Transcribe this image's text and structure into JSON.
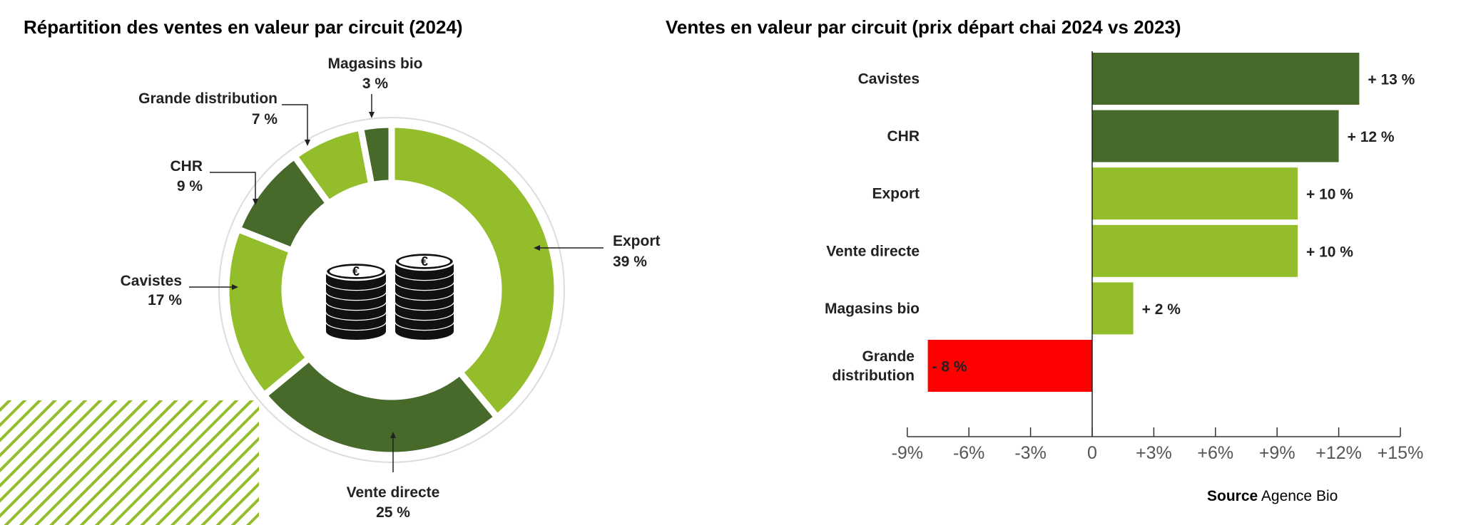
{
  "colors": {
    "dark_green": "#476a2b",
    "light_green": "#93bd2a",
    "red": "#ff0000",
    "ring": "#dddddd"
  },
  "chart_data": [
    {
      "type": "pie",
      "title": "Répartition des ventes en valeur par circuit (2024)",
      "center_icon": "euro-coins-icon",
      "slices": [
        {
          "label": "Export",
          "value": 39,
          "value_label": "39 %",
          "color": "#93bd2a"
        },
        {
          "label": "Vente directe",
          "value": 25,
          "value_label": "25 %",
          "color": "#476a2b"
        },
        {
          "label": "Cavistes",
          "value": 17,
          "value_label": "17 %",
          "color": "#93bd2a"
        },
        {
          "label": "CHR",
          "value": 9,
          "value_label": "9 %",
          "color": "#476a2b"
        },
        {
          "label": "Grande distribution",
          "value": 7,
          "value_label": "7 %",
          "color": "#93bd2a"
        },
        {
          "label": "Magasins bio",
          "value": 3,
          "value_label": "3 %",
          "color": "#476a2b"
        }
      ]
    },
    {
      "type": "bar",
      "orientation": "horizontal",
      "title": "Ventes en valeur par circuit (prix départ chai 2024 vs 2023)",
      "categories": [
        "Cavistes",
        "CHR",
        "Export",
        "Vente directe",
        "Magasins bio",
        "Grande distribution"
      ],
      "category_lines": [
        [
          "Cavistes"
        ],
        [
          "CHR"
        ],
        [
          "Export"
        ],
        [
          "Vente directe"
        ],
        [
          "Magasins bio"
        ],
        [
          "Grande",
          "distribution"
        ]
      ],
      "values": [
        13,
        12,
        10,
        10,
        2,
        -8
      ],
      "value_labels": [
        "+ 13 %",
        "+ 12 %",
        "+ 10 %",
        "+ 10 %",
        "+ 2 %",
        "- 8 %"
      ],
      "bar_colors": [
        "#476a2b",
        "#476a2b",
        "#93bd2a",
        "#93bd2a",
        "#93bd2a",
        "#ff0000"
      ],
      "xlim": [
        -9,
        15
      ],
      "xticks": [
        -9,
        -6,
        -3,
        0,
        3,
        6,
        9,
        12,
        15
      ],
      "xtick_labels": [
        "-9%",
        "-6%",
        "-3%",
        "0",
        "+3%",
        "+6%",
        "+9%",
        "+12%",
        "+15%"
      ],
      "grid": false
    }
  ],
  "source": {
    "label": "Source",
    "value": "Agence Bio"
  }
}
